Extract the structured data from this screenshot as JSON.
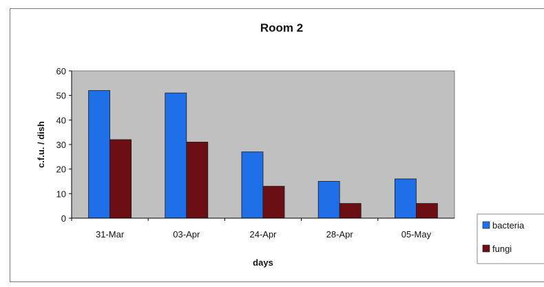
{
  "chart_data": {
    "type": "bar",
    "title": "Room 2",
    "xlabel": "days",
    "ylabel": "c.f.u. / dish",
    "categories": [
      "31-Mar",
      "03-Apr",
      "24-Apr",
      "28-Apr",
      "05-May"
    ],
    "series": [
      {
        "name": "bacteria",
        "values": [
          52,
          51,
          27,
          15,
          16
        ],
        "color": "#1f6fe8"
      },
      {
        "name": "fungi",
        "values": [
          32,
          31,
          13,
          6,
          6
        ],
        "color": "#6b0f14"
      }
    ],
    "ylim": [
      0,
      60
    ],
    "yticks": [
      0,
      10,
      20,
      30,
      40,
      50,
      60
    ],
    "grid": false,
    "legend_position": "right",
    "plot_background": "#c0c0c0"
  }
}
